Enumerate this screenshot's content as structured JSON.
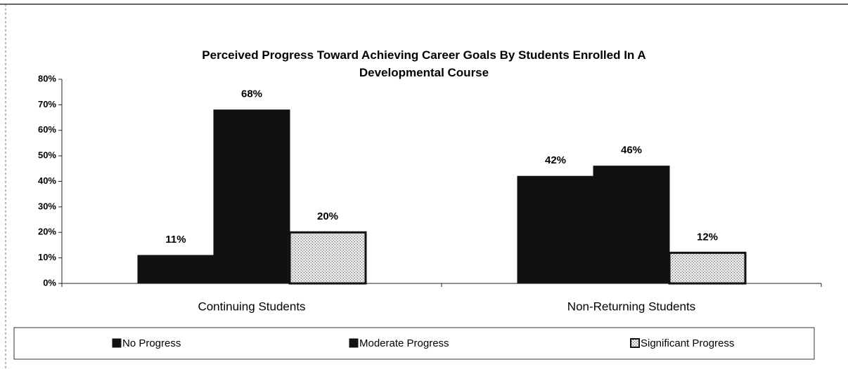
{
  "chart_data": {
    "type": "bar",
    "title": "Perceived Progress Toward Achieving Career Goals By Students Enrolled In A Developmental Course",
    "categories": [
      "Continuing Students",
      "Non-Returning Students"
    ],
    "series": [
      {
        "name": "No Progress",
        "color": "#111111",
        "values": [
          11,
          42
        ],
        "value_labels": [
          "11%",
          "42%"
        ]
      },
      {
        "name": "Moderate Progress",
        "color": "#111111",
        "values": [
          68,
          46
        ],
        "value_labels": [
          "68%",
          "46%"
        ]
      },
      {
        "name": "Significant Progress",
        "color": "#c4c4c4",
        "values": [
          20,
          12
        ],
        "value_labels": [
          "20%",
          "12%"
        ]
      }
    ],
    "ylim": [
      0,
      80
    ],
    "yticks": [
      {
        "value": 0,
        "label": "0%"
      },
      {
        "value": 10,
        "label": "10%"
      },
      {
        "value": 20,
        "label": "20%"
      },
      {
        "value": 30,
        "label": "30%"
      },
      {
        "value": 40,
        "label": "40%"
      },
      {
        "value": 50,
        "label": "50%"
      },
      {
        "value": 60,
        "label": "60%"
      },
      {
        "value": 70,
        "label": "70%"
      },
      {
        "value": 80,
        "label": "80%"
      }
    ],
    "legend": "bottom"
  }
}
